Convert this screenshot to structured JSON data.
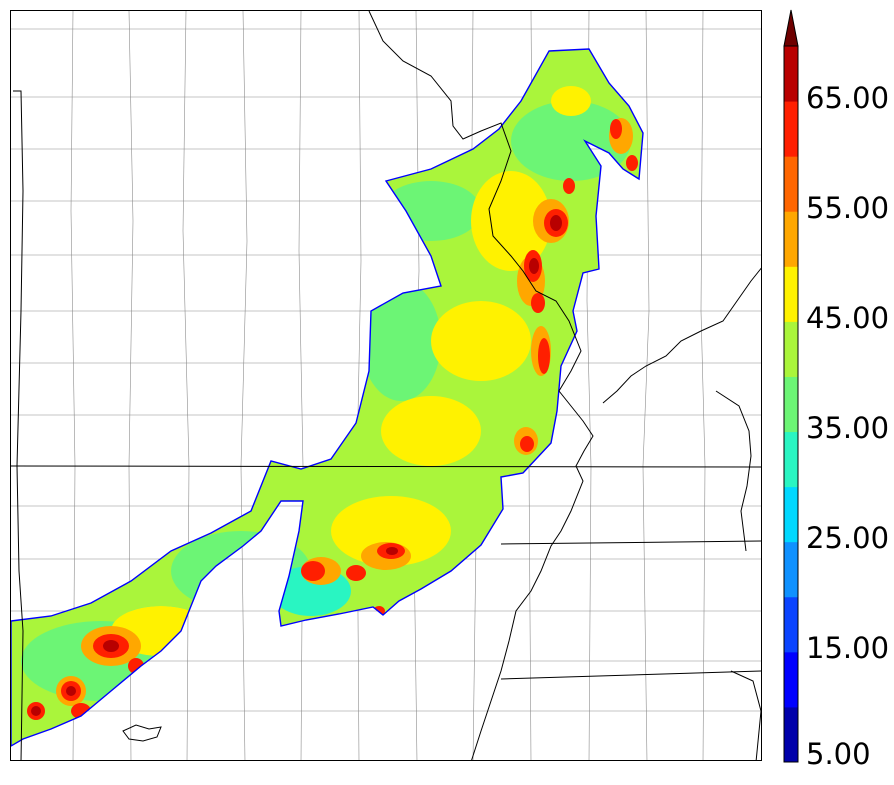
{
  "colorbar": {
    "min": 5,
    "max": 70,
    "extend": "max",
    "levels": [
      5,
      10,
      15,
      20,
      25,
      30,
      35,
      40,
      45,
      50,
      55,
      60,
      65,
      70
    ],
    "colors": [
      "#0000aa",
      "#0000ff",
      "#0a44ff",
      "#0f91ff",
      "#00d8ff",
      "#29f5c2",
      "#6cf575",
      "#aaf53b",
      "#fff200",
      "#ffa700",
      "#ff6600",
      "#ff1f00",
      "#b80000"
    ],
    "extend_color": "#6e0000",
    "tick_labels": [
      "5.00",
      "15.00",
      "25.00",
      "35.00",
      "45.00",
      "55.00",
      "65.00"
    ]
  },
  "map": {
    "state_line_color": "#000000",
    "county_line_color": "#8c8c8c",
    "field_outline_color": "#0000ff"
  }
}
